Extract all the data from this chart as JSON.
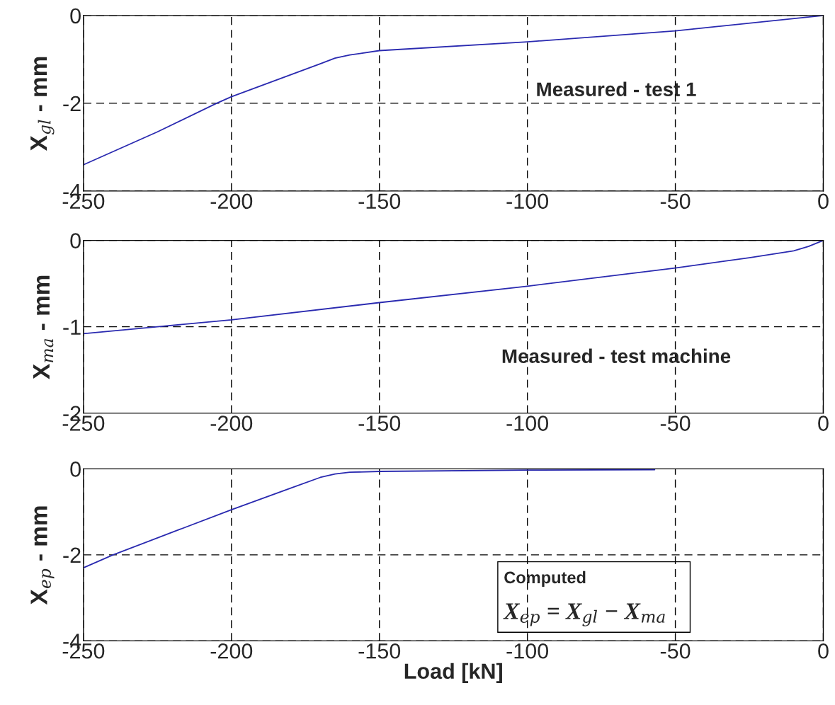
{
  "chart_data": [
    {
      "type": "line",
      "ylabel": "X$_{gl}$ - mm",
      "xlim": [
        -250,
        0
      ],
      "ylim": [
        -4,
        0
      ],
      "xticks": [
        -250,
        -200,
        -150,
        -100,
        -50,
        0
      ],
      "yticks": [
        -4,
        -2,
        0
      ],
      "grid": true,
      "line_style": "solid",
      "series": [
        {
          "color": "#2a2ab0",
          "x": [
            -250,
            -225,
            -205,
            -200,
            -190,
            -180,
            -170,
            -165,
            -160,
            -150,
            -100,
            -50,
            0
          ],
          "values": [
            -3.4,
            -2.65,
            -2.0,
            -1.85,
            -1.6,
            -1.35,
            -1.1,
            -0.97,
            -0.9,
            -0.8,
            -0.6,
            -0.35,
            0
          ]
        }
      ],
      "annotations": [
        "Measured - test 1"
      ]
    },
    {
      "type": "line",
      "ylabel": "X$_{ma}$ - mm",
      "xlim": [
        -250,
        0
      ],
      "ylim": [
        -2,
        0
      ],
      "xticks": [
        -250,
        -200,
        -150,
        -100,
        -50,
        0
      ],
      "yticks": [
        -2,
        -1,
        0
      ],
      "grid": true,
      "line_style": "solid",
      "series": [
        {
          "color": "#2a2ab0",
          "x": [
            -250,
            -225,
            -200,
            -150,
            -100,
            -50,
            -25,
            -10,
            -5,
            0
          ],
          "values": [
            -1.08,
            -1.0,
            -0.92,
            -0.72,
            -0.53,
            -0.32,
            -0.2,
            -0.12,
            -0.07,
            0
          ]
        }
      ],
      "annotations": [
        "Measured - test machine"
      ]
    },
    {
      "type": "line",
      "ylabel": "X$_{ep}$ - mm",
      "xlabel": "Load [kN]",
      "xlim": [
        -250,
        0
      ],
      "ylim": [
        -4,
        0
      ],
      "xticks": [
        -250,
        -200,
        -150,
        -100,
        -50,
        0
      ],
      "yticks": [
        -4,
        -2,
        0
      ],
      "grid": true,
      "line_style": "solid",
      "series": [
        {
          "color": "#2a2ab0",
          "x": [
            -250,
            -240,
            -200,
            -180,
            -170,
            -165,
            -160,
            -150,
            -100,
            -57
          ],
          "values": [
            -2.3,
            -2.0,
            -0.95,
            -0.45,
            -0.2,
            -0.12,
            -0.08,
            -0.06,
            -0.03,
            -0.02
          ]
        }
      ],
      "annotations": [
        "Computed",
        "X$_{ep}$ = X$_{gl}$ − X$_{ma}$"
      ]
    }
  ]
}
